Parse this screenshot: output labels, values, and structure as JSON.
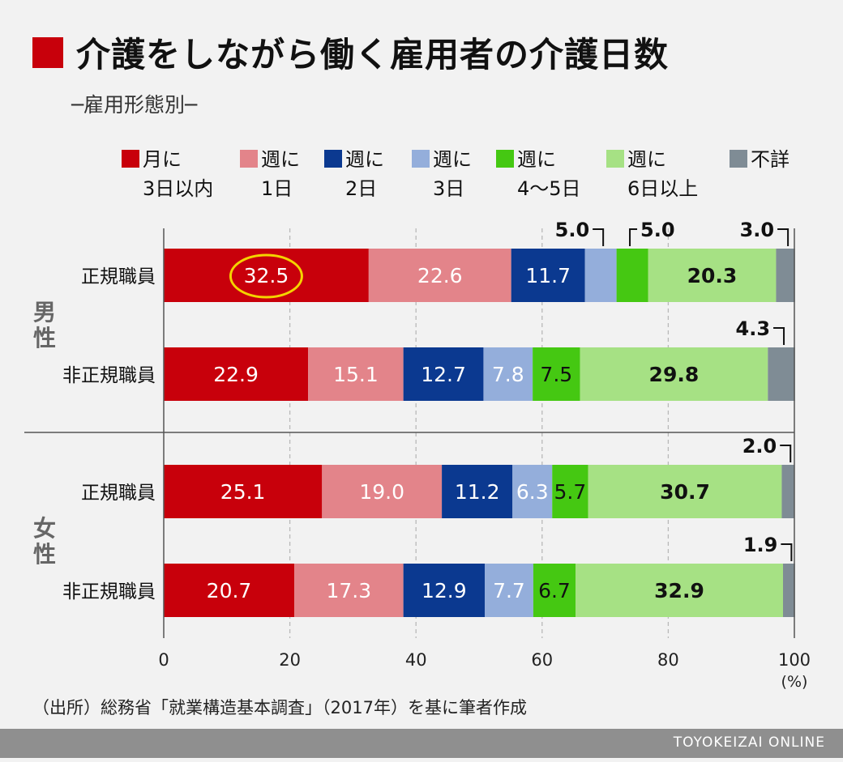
{
  "title": "介護をしながら働く雇用者の介護日数",
  "subtitle": "─雇用形態別─",
  "source": "（出所）総務省「就業構造基本調査」（2017年）を基に筆者作成",
  "credit": "TOYOKEIZAI ONLINE",
  "chart_data": {
    "type": "bar",
    "orientation": "horizontal-stacked-100",
    "xlim": [
      0,
      100
    ],
    "x_ticks": [
      "0",
      "20",
      "40",
      "60",
      "80",
      "100"
    ],
    "x_unit": "(%)",
    "legend_position": "top",
    "categories": [
      {
        "group": "男性",
        "label": "正規職員"
      },
      {
        "group": "男性",
        "label": "非正規職員"
      },
      {
        "group": "女性",
        "label": "正規職員"
      },
      {
        "group": "女性",
        "label": "非正規職員"
      }
    ],
    "series": [
      {
        "name": "月に\n3日以内",
        "color": "#c8000b",
        "values": [
          32.5,
          22.9,
          25.1,
          20.7
        ]
      },
      {
        "name": "週に\n1日",
        "color": "#e3848a",
        "values": [
          22.6,
          15.1,
          19.0,
          17.3
        ]
      },
      {
        "name": "週に\n2日",
        "color": "#0b3990",
        "values": [
          11.7,
          12.7,
          11.2,
          12.9
        ]
      },
      {
        "name": "週に\n3日",
        "color": "#94aedb",
        "values": [
          5.0,
          7.8,
          6.3,
          7.7
        ]
      },
      {
        "name": "週に\n4〜5日",
        "color": "#45c812",
        "values": [
          5.0,
          7.5,
          5.7,
          6.7
        ]
      },
      {
        "name": "週に\n6日以上",
        "color": "#a6e184",
        "values": [
          20.3,
          29.8,
          30.7,
          32.9
        ]
      },
      {
        "name": "不詳",
        "color": "#7f8c95",
        "values": [
          3.0,
          4.3,
          2.0,
          1.9
        ]
      }
    ],
    "highlight": {
      "row": 0,
      "series": 0,
      "style": "yellow-ellipse"
    }
  }
}
